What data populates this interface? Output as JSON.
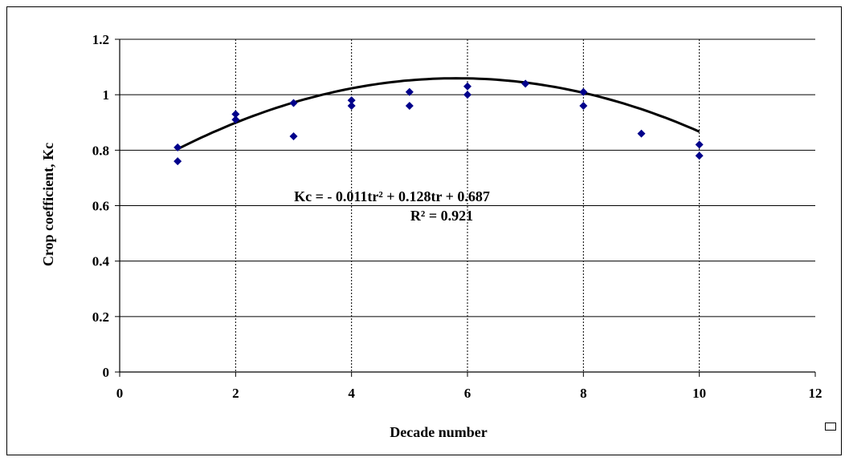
{
  "chart_data": {
    "type": "scatter",
    "xlabel": "Decade number",
    "ylabel": "Crop coefficient, Kc",
    "xlim": [
      0,
      12
    ],
    "ylim": [
      0,
      1.2
    ],
    "x_ticks": [
      "0",
      "2",
      "4",
      "6",
      "8",
      "10",
      "12"
    ],
    "y_ticks": [
      "0",
      "0.2",
      "0.4",
      "0.6",
      "0.8",
      "1",
      "1.2"
    ],
    "grid": {
      "horizontal": true,
      "vertical": true,
      "vertical_style": "dotted"
    },
    "marker": {
      "shape": "diamond",
      "color": "#00008B"
    },
    "points": [
      {
        "x": 1,
        "y": 0.81
      },
      {
        "x": 1,
        "y": 0.76
      },
      {
        "x": 2,
        "y": 0.93
      },
      {
        "x": 2,
        "y": 0.91
      },
      {
        "x": 3,
        "y": 0.97
      },
      {
        "x": 3,
        "y": 0.85
      },
      {
        "x": 4,
        "y": 0.98
      },
      {
        "x": 4,
        "y": 0.96
      },
      {
        "x": 5,
        "y": 1.01
      },
      {
        "x": 5,
        "y": 0.96
      },
      {
        "x": 6,
        "y": 1.03
      },
      {
        "x": 6,
        "y": 1.0
      },
      {
        "x": 7,
        "y": 1.04
      },
      {
        "x": 8,
        "y": 1.01
      },
      {
        "x": 8,
        "y": 0.96
      },
      {
        "x": 9,
        "y": 0.86
      },
      {
        "x": 10,
        "y": 0.82
      },
      {
        "x": 10,
        "y": 0.78
      }
    ],
    "trendline": {
      "type": "polynomial",
      "coefficients": [
        -0.011,
        0.128,
        0.687
      ],
      "x_range": [
        1,
        10
      ],
      "color": "#000000"
    },
    "annotations": {
      "equation_line1": "Kc = - 0.011tr² + 0.128tr + 0.687",
      "equation_line2": "R² = 0.921"
    }
  }
}
